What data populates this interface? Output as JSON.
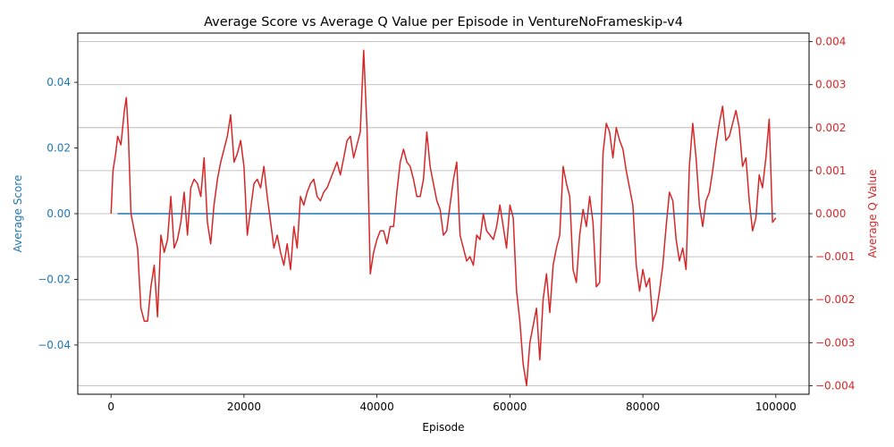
{
  "chart_data": {
    "type": "line",
    "title": "Average Score vs Average Q Value per Episode in VentureNoFrameskip-v4",
    "xlabel": "Episode",
    "ylabel_left": "Average Score",
    "ylabel_right": "Average Q Value",
    "xlim": [
      -5000,
      105000
    ],
    "ylim_left": [
      -0.055,
      0.055
    ],
    "ylim_right": [
      -0.0042,
      0.0042
    ],
    "x_ticks": [
      0,
      20000,
      40000,
      60000,
      80000,
      100000
    ],
    "x_tick_labels": [
      "0",
      "20000",
      "40000",
      "60000",
      "80000",
      "100000"
    ],
    "y_left_ticks": [
      -0.04,
      -0.02,
      0.0,
      0.02,
      0.04
    ],
    "y_left_tick_labels": [
      "−0.04",
      "−0.02",
      "0.00",
      "0.02",
      "0.04"
    ],
    "y_right_ticks": [
      -0.004,
      -0.003,
      -0.002,
      -0.001,
      0.0,
      0.001,
      0.002,
      0.003,
      0.004
    ],
    "y_right_tick_labels": [
      "−0.004",
      "−0.003",
      "−0.002",
      "−0.001",
      "0.000",
      "0.001",
      "0.002",
      "0.003",
      "0.004"
    ],
    "grid": "horizontal, right axis",
    "colors": {
      "score": "#1f77b4",
      "q": "#d62728",
      "grid": "#b0b0b0"
    },
    "series": [
      {
        "axis": "left",
        "color": "#1f77b4",
        "x": [
          1000,
          100000
        ],
        "values": [
          0.0,
          0.0
        ]
      },
      {
        "axis": "right",
        "color": "#d62728",
        "x": [
          0,
          300,
          700,
          1000,
          1500,
          2000,
          2300,
          2600,
          3000,
          3500,
          4000,
          4500,
          5000,
          5500,
          6000,
          6500,
          7000,
          7500,
          8000,
          8500,
          9000,
          9500,
          10000,
          10500,
          11000,
          11500,
          12000,
          12500,
          13000,
          13500,
          14000,
          14500,
          15000,
          15500,
          16000,
          16500,
          17000,
          17500,
          18000,
          18500,
          19000,
          19500,
          20000,
          20500,
          21000,
          21500,
          22000,
          22500,
          23000,
          23500,
          24000,
          24500,
          25000,
          25500,
          26000,
          26500,
          27000,
          27500,
          28000,
          28500,
          29000,
          29500,
          30000,
          30500,
          31000,
          31500,
          32000,
          32500,
          33000,
          33500,
          34000,
          34500,
          35000,
          35500,
          36000,
          36500,
          37000,
          37500,
          38000,
          38500,
          39000,
          39500,
          40000,
          40500,
          41000,
          41500,
          42000,
          42500,
          43000,
          43500,
          44000,
          44500,
          45000,
          45500,
          46000,
          46500,
          47000,
          47500,
          48000,
          48500,
          49000,
          49500,
          50000,
          50500,
          51000,
          51500,
          52000,
          52500,
          53000,
          53500,
          54000,
          54500,
          55000,
          55500,
          56000,
          56500,
          57000,
          57500,
          58000,
          58500,
          59000,
          59500,
          60000,
          60500,
          61000,
          61500,
          62000,
          62500,
          63000,
          63500,
          64000,
          64500,
          65000,
          65500,
          66000,
          66500,
          67000,
          67500,
          68000,
          68500,
          69000,
          69500,
          70000,
          70500,
          71000,
          71500,
          72000,
          72500,
          73000,
          73500,
          74000,
          74500,
          75000,
          75500,
          76000,
          76500,
          77000,
          77500,
          78000,
          78500,
          79000,
          79500,
          80000,
          80500,
          81000,
          81500,
          82000,
          82500,
          83000,
          83500,
          84000,
          84500,
          85000,
          85500,
          86000,
          86500,
          87000,
          87500,
          88000,
          88500,
          89000,
          89500,
          90000,
          90500,
          91000,
          91500,
          92000,
          92500,
          93000,
          93500,
          94000,
          94500,
          95000,
          95500,
          96000,
          96500,
          97000,
          97500,
          98000,
          98500,
          99000,
          99500,
          100000
        ],
        "values": [
          0.0,
          0.001,
          0.0014,
          0.0018,
          0.0016,
          0.0024,
          0.0027,
          0.0019,
          0.0,
          -0.0004,
          -0.0008,
          -0.0022,
          -0.0025,
          -0.0025,
          -0.0017,
          -0.0012,
          -0.0024,
          -0.0005,
          -0.0009,
          -0.0006,
          0.0004,
          -0.0008,
          -0.0006,
          -0.0002,
          0.0005,
          -0.0005,
          0.0006,
          0.0008,
          0.0007,
          0.0004,
          0.0013,
          -0.0002,
          -0.0007,
          0.0002,
          0.0008,
          0.0012,
          0.0015,
          0.0018,
          0.0023,
          0.0012,
          0.0014,
          0.0017,
          0.0011,
          -0.0005,
          0.0001,
          0.0007,
          0.0008,
          0.0006,
          0.0011,
          0.0004,
          -0.0002,
          -0.0008,
          -0.0005,
          -0.0009,
          -0.0012,
          -0.0007,
          -0.0013,
          -0.0003,
          -0.0008,
          0.0004,
          0.0002,
          0.0005,
          0.0007,
          0.0008,
          0.0004,
          0.0003,
          0.0005,
          0.0006,
          0.0008,
          0.001,
          0.0012,
          0.0009,
          0.0013,
          0.0017,
          0.0018,
          0.0013,
          0.0016,
          0.0019,
          0.0038,
          0.002,
          -0.0014,
          -0.0009,
          -0.0006,
          -0.0004,
          -0.0004,
          -0.0007,
          -0.0003,
          -0.0003,
          0.0005,
          0.0012,
          0.0015,
          0.0012,
          0.0011,
          0.0008,
          0.0004,
          0.0004,
          0.0008,
          0.0019,
          0.0011,
          0.0007,
          0.0003,
          0.0001,
          -0.0005,
          -0.0004,
          0.0002,
          0.0008,
          0.0012,
          -0.0005,
          -0.0008,
          -0.0011,
          -0.001,
          -0.0012,
          -0.0005,
          -0.0006,
          0.0,
          -0.0004,
          -0.0005,
          -0.0006,
          -0.0003,
          0.0002,
          -0.0003,
          -0.0008,
          0.0002,
          -0.0001,
          -0.0018,
          -0.0025,
          -0.0035,
          -0.004,
          -0.003,
          -0.0026,
          -0.0022,
          -0.0034,
          -0.002,
          -0.0014,
          -0.0023,
          -0.0012,
          -0.0008,
          -0.0005,
          0.0011,
          0.0007,
          0.0004,
          -0.0013,
          -0.0016,
          -0.0005,
          0.0001,
          -0.0003,
          0.0004,
          -0.0002,
          -0.0017,
          -0.0016,
          0.0014,
          0.0021,
          0.0019,
          0.0013,
          0.002,
          0.0017,
          0.0015,
          0.001,
          0.0006,
          0.0002,
          -0.0012,
          -0.0018,
          -0.0013,
          -0.0017,
          -0.0015,
          -0.0025,
          -0.0023,
          -0.0018,
          -0.0012,
          -0.0003,
          0.0005,
          0.0003,
          -0.0006,
          -0.0011,
          -0.0008,
          -0.0013,
          0.0011,
          0.0021,
          0.0013,
          0.0002,
          -0.0003,
          0.0003,
          0.0005,
          0.001,
          0.0016,
          0.0021,
          0.0025,
          0.0017,
          0.0018,
          0.0021,
          0.0024,
          0.002,
          0.0011,
          0.0013,
          0.0003,
          -0.0004,
          -0.0001,
          0.0009,
          0.0006,
          0.0013,
          0.0022,
          -0.0002,
          -0.0001
        ]
      }
    ]
  }
}
